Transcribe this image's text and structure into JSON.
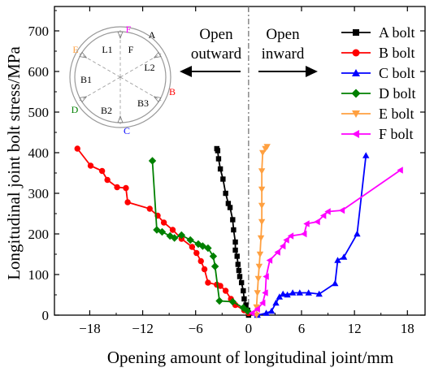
{
  "chart_data": {
    "type": "line",
    "xlabel": "Opening amount of longitudinal joint/mm",
    "ylabel": "Longitudinal joint bolt stress/MPa",
    "xlim": [
      -22,
      20
    ],
    "ylim": [
      0,
      760
    ],
    "xticks": [
      -18,
      -12,
      -6,
      0,
      6,
      12,
      18
    ],
    "yticks": [
      0,
      100,
      200,
      300,
      400,
      500,
      600,
      700
    ],
    "grid": false,
    "legend_position": "top-right",
    "series": [
      {
        "name": "A bolt",
        "color": "#000000",
        "marker": "square",
        "points": [
          [
            -3.6,
            410
          ],
          [
            -3.5,
            405
          ],
          [
            -3.4,
            385
          ],
          [
            -3.2,
            360
          ],
          [
            -2.9,
            335
          ],
          [
            -2.6,
            300
          ],
          [
            -2.3,
            275
          ],
          [
            -2.1,
            265
          ],
          [
            -1.8,
            235
          ],
          [
            -1.7,
            210
          ],
          [
            -1.5,
            180
          ],
          [
            -1.5,
            160
          ],
          [
            -1.3,
            145
          ],
          [
            -1.2,
            125
          ],
          [
            -1.1,
            110
          ],
          [
            -1.0,
            95
          ],
          [
            -0.8,
            80
          ],
          [
            -0.6,
            60
          ],
          [
            -0.5,
            40
          ],
          [
            -0.3,
            25
          ],
          [
            -0.1,
            12
          ],
          [
            0.0,
            0
          ]
        ]
      },
      {
        "name": "B bolt",
        "color": "#ff0000",
        "marker": "circle",
        "points": [
          [
            -19.4,
            410
          ],
          [
            -17.9,
            368
          ],
          [
            -16.6,
            355
          ],
          [
            -16.0,
            333
          ],
          [
            -14.9,
            315
          ],
          [
            -13.9,
            313
          ],
          [
            -13.7,
            278
          ],
          [
            -11.2,
            262
          ],
          [
            -10.3,
            245
          ],
          [
            -9.6,
            228
          ],
          [
            -8.6,
            210
          ],
          [
            -7.6,
            188
          ],
          [
            -6.4,
            168
          ],
          [
            -5.9,
            153
          ],
          [
            -5.4,
            133
          ],
          [
            -5.0,
            113
          ],
          [
            -4.6,
            80
          ],
          [
            -3.6,
            75
          ],
          [
            -3.2,
            72
          ],
          [
            -2.6,
            60
          ],
          [
            -2.0,
            40
          ],
          [
            -1.5,
            25
          ],
          [
            -0.5,
            12
          ],
          [
            0.0,
            5
          ]
        ]
      },
      {
        "name": "C bolt",
        "color": "#0000ff",
        "marker": "triangle-up",
        "points": [
          [
            1.0,
            0
          ],
          [
            2.0,
            5
          ],
          [
            2.6,
            10
          ],
          [
            3.1,
            30
          ],
          [
            3.5,
            45
          ],
          [
            3.9,
            52
          ],
          [
            4.4,
            50
          ],
          [
            5.0,
            55
          ],
          [
            5.8,
            55
          ],
          [
            6.8,
            55
          ],
          [
            8.0,
            52
          ],
          [
            9.8,
            78
          ],
          [
            10.1,
            135
          ],
          [
            10.8,
            143
          ],
          [
            12.3,
            200
          ],
          [
            13.3,
            393
          ]
        ]
      },
      {
        "name": "D bolt",
        "color": "#008000",
        "marker": "diamond",
        "points": [
          [
            -10.9,
            380
          ],
          [
            -10.4,
            210
          ],
          [
            -9.8,
            205
          ],
          [
            -8.9,
            195
          ],
          [
            -8.4,
            190
          ],
          [
            -7.6,
            197
          ],
          [
            -6.6,
            185
          ],
          [
            -5.7,
            175
          ],
          [
            -5.2,
            170
          ],
          [
            -4.6,
            165
          ],
          [
            -4.0,
            145
          ],
          [
            -3.8,
            120
          ],
          [
            -3.3,
            35
          ],
          [
            -1.8,
            33
          ],
          [
            -0.6,
            18
          ],
          [
            -0.1,
            10
          ]
        ]
      },
      {
        "name": "E bolt",
        "color": "#ffa040",
        "marker": "triangle-down",
        "points": [
          [
            2.1,
            415
          ],
          [
            1.9,
            410
          ],
          [
            1.6,
            400
          ],
          [
            1.5,
            355
          ],
          [
            1.5,
            310
          ],
          [
            1.5,
            270
          ],
          [
            1.5,
            230
          ],
          [
            1.4,
            190
          ],
          [
            1.3,
            150
          ],
          [
            1.2,
            120
          ],
          [
            1.1,
            90
          ],
          [
            1.0,
            55
          ],
          [
            0.9,
            20
          ],
          [
            0.9,
            0
          ]
        ]
      },
      {
        "name": "F bolt",
        "color": "#ff00ff",
        "marker": "triangle-left",
        "points": [
          [
            0.4,
            5
          ],
          [
            1.0,
            15
          ],
          [
            1.6,
            30
          ],
          [
            1.9,
            55
          ],
          [
            2.0,
            95
          ],
          [
            2.4,
            135
          ],
          [
            3.3,
            155
          ],
          [
            3.9,
            170
          ],
          [
            4.3,
            185
          ],
          [
            4.8,
            195
          ],
          [
            6.3,
            200
          ],
          [
            6.6,
            225
          ],
          [
            7.8,
            230
          ],
          [
            8.5,
            245
          ],
          [
            9.0,
            255
          ],
          [
            10.6,
            258
          ],
          [
            17.2,
            357
          ]
        ]
      }
    ],
    "annotations": {
      "left_text": [
        "Open",
        "outward"
      ],
      "right_text": [
        "Open",
        "inward"
      ]
    }
  },
  "diagram": {
    "labels": [
      {
        "text": "F",
        "color": "#ff00ff"
      },
      {
        "text": "A",
        "color": "#000000"
      },
      {
        "text": "E",
        "color": "#ffa040"
      },
      {
        "text": "L1",
        "color": "#000000"
      },
      {
        "text": "F",
        "color": "#000000"
      },
      {
        "text": "L2",
        "color": "#000000"
      },
      {
        "text": "B1",
        "color": "#000000"
      },
      {
        "text": "B",
        "color": "#ff0000"
      },
      {
        "text": "B3",
        "color": "#000000"
      },
      {
        "text": "D",
        "color": "#008000"
      },
      {
        "text": "B2",
        "color": "#000000"
      },
      {
        "text": "C",
        "color": "#0000ff"
      }
    ]
  }
}
